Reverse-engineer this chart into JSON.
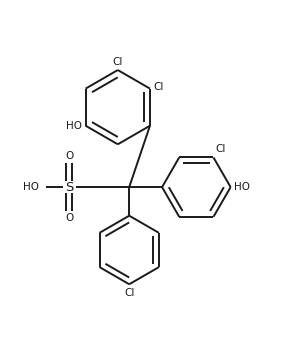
{
  "background_color": "#ffffff",
  "line_color": "#1a1a1a",
  "text_color": "#1a1a1a",
  "line_width": 1.4,
  "font_size": 7.5,
  "fig_width": 2.87,
  "fig_height": 3.6,
  "dpi": 100,
  "xlim": [
    0,
    10
  ],
  "ylim": [
    0,
    12.5
  ]
}
